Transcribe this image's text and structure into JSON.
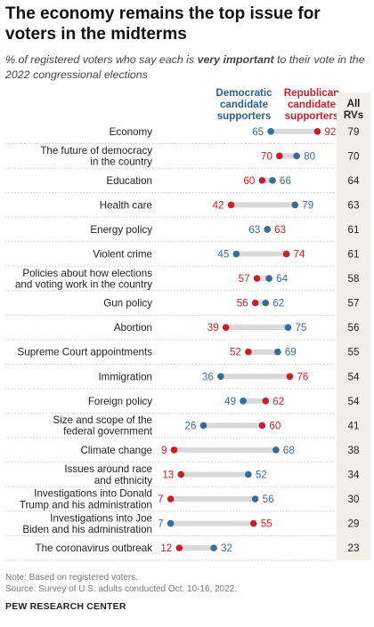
{
  "title": "The economy remains the top issue for voters in the midterms",
  "subtitle_pre": "% of registered voters who say each is ",
  "subtitle_em": "very important",
  "subtitle_post": " to their vote in the 2022 congressional elections",
  "legend_dem": "Democratic candidate supporters",
  "legend_rep": "Republican candidate supporters",
  "allrv_header": "All RVs",
  "colors": {
    "dem": "#3a6a96",
    "rep": "#c6202b",
    "bar": "#d9d9d9"
  },
  "note": "Note: Based on registered voters.",
  "source": "Source: Survey of U.S. adults conducted Oct. 10-16, 2022.",
  "brand": "PEW RESEARCH CENTER",
  "chart_data": {
    "type": "dot",
    "xlim": [
      0,
      100
    ],
    "categories": [
      [
        "Economy"
      ],
      [
        "The future of democracy",
        "in the country"
      ],
      [
        "Education"
      ],
      [
        "Health care"
      ],
      [
        "Energy policy"
      ],
      [
        "Violent crime"
      ],
      [
        "Policies about how elections",
        "and voting work in the country"
      ],
      [
        "Gun policy"
      ],
      [
        "Abortion"
      ],
      [
        "Supreme Court appointments"
      ],
      [
        "Immigration"
      ],
      [
        "Foreign policy"
      ],
      [
        "Size and scope of the",
        "federal government"
      ],
      [
        "Climate change"
      ],
      [
        "Issues around race",
        "and ethnicity"
      ],
      [
        "Investigations into Donald",
        "Trump and his administration"
      ],
      [
        "Investigations into Joe",
        "Biden and his administration"
      ],
      [
        "The coronavirus outbreak"
      ]
    ],
    "series": [
      {
        "name": "Democratic candidate supporters",
        "values": [
          65,
          80,
          66,
          79,
          63,
          45,
          64,
          62,
          75,
          69,
          36,
          49,
          26,
          68,
          52,
          56,
          7,
          32
        ]
      },
      {
        "name": "Republican candidate supporters",
        "values": [
          92,
          70,
          60,
          42,
          63,
          74,
          57,
          56,
          39,
          52,
          76,
          62,
          60,
          9,
          13,
          7,
          55,
          12
        ]
      },
      {
        "name": "All RVs",
        "values": [
          79,
          70,
          64,
          63,
          61,
          61,
          58,
          57,
          56,
          55,
          54,
          54,
          41,
          38,
          34,
          30,
          29,
          23
        ]
      }
    ]
  }
}
